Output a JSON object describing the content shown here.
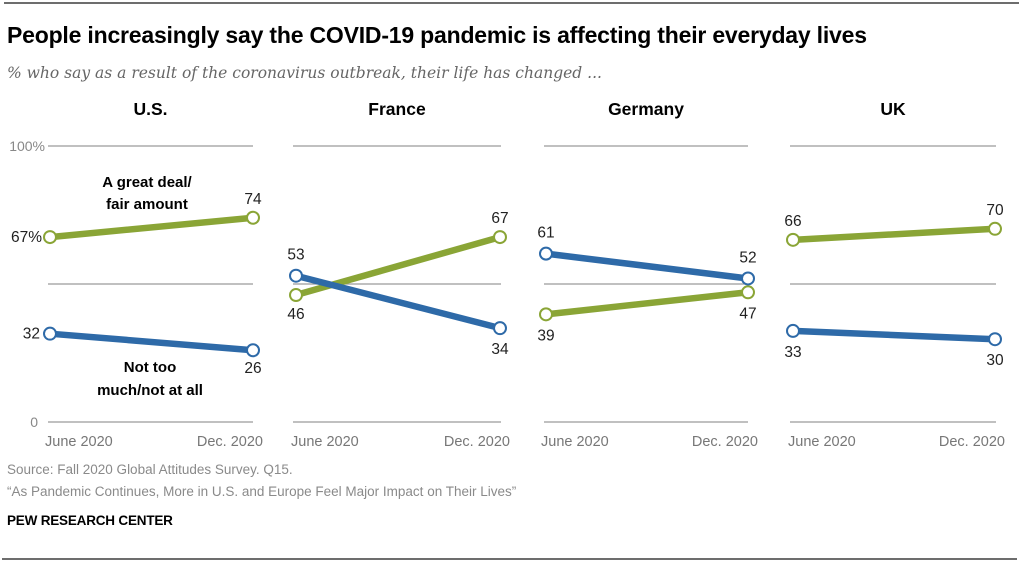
{
  "header": {
    "title": "People increasingly say the COVID-19 pandemic is affecting their everyday lives",
    "subtitle": "% who say as a result of the coronavirus outbreak, their life has changed ..."
  },
  "footer": {
    "source": "Source: Fall 2020 Global Attitudes Survey. Q15.",
    "note": "“As Pandemic Continues, More in U.S. and Europe Feel Major Impact on Their Lives”",
    "org": "PEW RESEARCH CENTER"
  },
  "colors": {
    "great_deal": "#8aa536",
    "not_too_much": "#2e6aa8",
    "grid": "#9a9a9a"
  },
  "chart_data": {
    "type": "line",
    "title": "People increasingly say the COVID-19 pandemic is affecting their everyday lives",
    "subtitle": "% who say as a result of the coronavirus outbreak, their life has changed ...",
    "x": [
      "June 2020",
      "Dec. 2020"
    ],
    "ylim": [
      0,
      100
    ],
    "yticks": [
      "100%",
      "0"
    ],
    "grid": true,
    "series_labels": {
      "great_deal": "A great deal/\nfair amount",
      "not_too_much": "Not too\nmuch/not at all"
    },
    "panels": [
      {
        "name": "U.S.",
        "series": [
          {
            "key": "great_deal",
            "name": "A great deal/fair amount",
            "values": [
              67,
              74
            ],
            "labels": [
              "67%",
              "74"
            ]
          },
          {
            "key": "not_too_much",
            "name": "Not too much/not at all",
            "values": [
              32,
              26
            ],
            "labels": [
              "32",
              "26"
            ]
          }
        ]
      },
      {
        "name": "France",
        "series": [
          {
            "key": "great_deal",
            "name": "A great deal/fair amount",
            "values": [
              46,
              67
            ],
            "labels": [
              "46",
              "67"
            ]
          },
          {
            "key": "not_too_much",
            "name": "Not too much/not at all",
            "values": [
              53,
              34
            ],
            "labels": [
              "53",
              "34"
            ]
          }
        ]
      },
      {
        "name": "Germany",
        "series": [
          {
            "key": "great_deal",
            "name": "A great deal/fair amount",
            "values": [
              39,
              47
            ],
            "labels": [
              "39",
              "47"
            ]
          },
          {
            "key": "not_too_much",
            "name": "Not too much/not at all",
            "values": [
              61,
              52
            ],
            "labels": [
              "61",
              "52"
            ]
          }
        ]
      },
      {
        "name": "UK",
        "series": [
          {
            "key": "great_deal",
            "name": "A great deal/fair amount",
            "values": [
              66,
              70
            ],
            "labels": [
              "66",
              "70"
            ]
          },
          {
            "key": "not_too_much",
            "name": "Not too much/not at all",
            "values": [
              33,
              30
            ],
            "labels": [
              "33",
              "30"
            ]
          }
        ]
      }
    ]
  }
}
